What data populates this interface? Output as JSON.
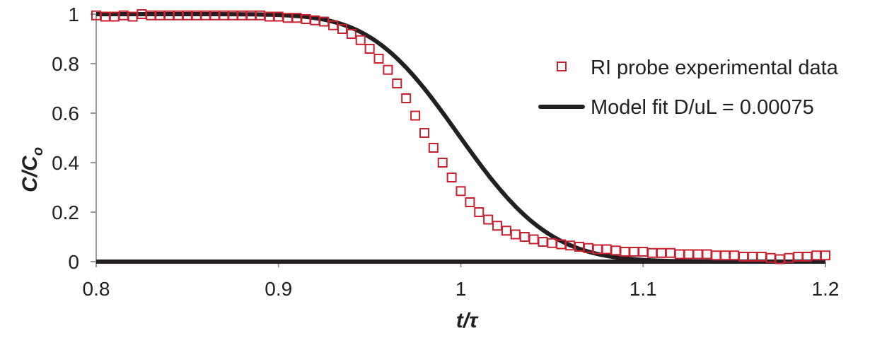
{
  "chart_data": {
    "type": "scatter",
    "title": "",
    "xlabel": "t/τ",
    "ylabel": "C/C_o",
    "ylabel_main": "C/C",
    "ylabel_sub": "o",
    "xlim": [
      0.8,
      1.2
    ],
    "ylim": [
      0,
      1
    ],
    "xticks": [
      0.8,
      0.9,
      1.0,
      1.1,
      1.2
    ],
    "xtick_labels": [
      "0.8",
      "0.9",
      "1",
      "1.1",
      "1.2"
    ],
    "yticks": [
      0,
      0.2,
      0.4,
      0.6,
      0.8,
      1.0
    ],
    "ytick_labels": [
      "0",
      "0.2",
      "0.4",
      "0.6",
      "0.8",
      "1"
    ],
    "grid": false,
    "legend_position": "upper right",
    "series": [
      {
        "name": "RI probe experimental data",
        "kind": "markers",
        "marker": "open-square",
        "color": "#c8202f",
        "x": [
          0.8,
          0.805,
          0.81,
          0.815,
          0.82,
          0.825,
          0.83,
          0.835,
          0.84,
          0.845,
          0.85,
          0.855,
          0.86,
          0.865,
          0.87,
          0.875,
          0.88,
          0.885,
          0.89,
          0.895,
          0.9,
          0.905,
          0.91,
          0.915,
          0.92,
          0.925,
          0.93,
          0.935,
          0.94,
          0.945,
          0.95,
          0.955,
          0.96,
          0.965,
          0.97,
          0.975,
          0.98,
          0.985,
          0.99,
          0.995,
          1.0,
          1.005,
          1.01,
          1.015,
          1.02,
          1.025,
          1.03,
          1.035,
          1.04,
          1.045,
          1.05,
          1.055,
          1.06,
          1.065,
          1.07,
          1.075,
          1.08,
          1.085,
          1.09,
          1.095,
          1.1,
          1.105,
          1.11,
          1.115,
          1.12,
          1.125,
          1.13,
          1.135,
          1.14,
          1.145,
          1.15,
          1.155,
          1.16,
          1.165,
          1.17,
          1.175,
          1.18,
          1.185,
          1.19,
          1.195,
          1.2
        ],
        "y": [
          0.995,
          0.99,
          0.99,
          0.995,
          0.99,
          1.0,
          0.995,
          0.995,
          0.995,
          0.995,
          0.995,
          0.995,
          0.995,
          0.995,
          0.995,
          0.995,
          0.995,
          0.995,
          0.995,
          0.99,
          0.99,
          0.985,
          0.985,
          0.98,
          0.975,
          0.97,
          0.955,
          0.94,
          0.92,
          0.895,
          0.86,
          0.82,
          0.775,
          0.72,
          0.66,
          0.59,
          0.52,
          0.46,
          0.4,
          0.34,
          0.285,
          0.24,
          0.2,
          0.17,
          0.145,
          0.125,
          0.11,
          0.1,
          0.09,
          0.08,
          0.075,
          0.07,
          0.065,
          0.06,
          0.055,
          0.05,
          0.05,
          0.045,
          0.04,
          0.04,
          0.04,
          0.035,
          0.035,
          0.035,
          0.03,
          0.03,
          0.03,
          0.03,
          0.025,
          0.025,
          0.025,
          0.02,
          0.02,
          0.02,
          0.015,
          0.01,
          0.015,
          0.02,
          0.02,
          0.025,
          0.025
        ]
      },
      {
        "name": "Model fit D/uL = 0.00075",
        "kind": "line",
        "color": "#231f20",
        "dispersion_number": 0.00075,
        "x": [
          0.8,
          0.85,
          0.9,
          0.92,
          0.94,
          0.95,
          0.96,
          0.97,
          0.98,
          0.99,
          1.0,
          1.01,
          1.02,
          1.03,
          1.04,
          1.05,
          1.06,
          1.07,
          1.08,
          1.1,
          1.15,
          1.2
        ],
        "y": [
          1.0,
          1.0,
          0.994,
          0.98,
          0.94,
          0.9,
          0.84,
          0.76,
          0.67,
          0.57,
          0.5,
          0.4,
          0.31,
          0.22,
          0.15,
          0.1,
          0.06,
          0.035,
          0.018,
          0.004,
          0.0,
          0.0
        ]
      }
    ]
  },
  "legend": {
    "items": [
      {
        "label": "RI probe experimental data"
      },
      {
        "label": "Model fit D/uL = 0.00075"
      }
    ]
  },
  "colors": {
    "marker": "#c8202f",
    "line": "#231f20",
    "axis": "#999999",
    "text": "#231f20"
  }
}
